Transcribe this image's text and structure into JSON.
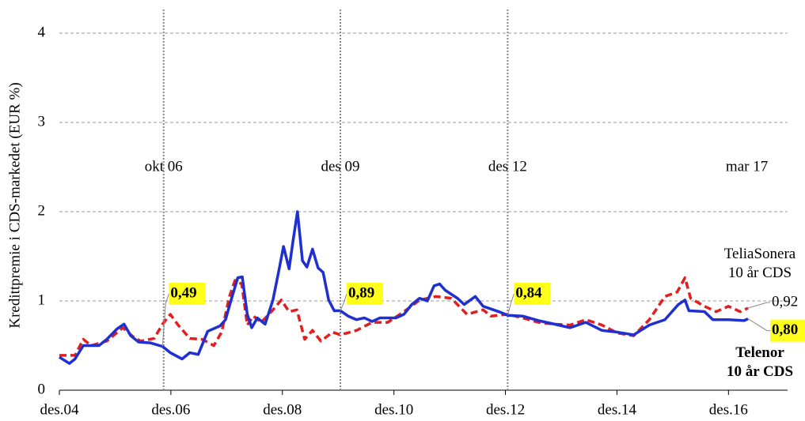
{
  "chart_data": {
    "type": "line",
    "y_label": "Kredittpremie i CDS-markedet (EUR %)",
    "xlim": [
      2004.92,
      2017.98
    ],
    "xticks": [
      {
        "value": 2004.92,
        "label": "des.04"
      },
      {
        "value": 2006.92,
        "label": "des.06"
      },
      {
        "value": 2008.92,
        "label": "des.08"
      },
      {
        "value": 2010.92,
        "label": "des.10"
      },
      {
        "value": 2012.92,
        "label": "des.12"
      },
      {
        "value": 2014.92,
        "label": "des.14"
      },
      {
        "value": 2016.92,
        "label": "des.16"
      }
    ],
    "ylim": [
      0,
      4.2
    ],
    "yticks": [
      0,
      1,
      2,
      3,
      4
    ],
    "grid": true,
    "event_lines": [
      {
        "x": 2006.79,
        "label": "okt 06",
        "line": true
      },
      {
        "x": 2009.96,
        "label": "des 09",
        "line": true
      },
      {
        "x": 2012.96,
        "label": "des 12",
        "line": true
      },
      {
        "x": 2017.25,
        "label": "mar 17",
        "line": false
      }
    ],
    "series": [
      {
        "name": "TeliaSonera 10 år CDS",
        "color": "#e02020",
        "dashed": true,
        "bold_name": false,
        "x": [
          2004.92,
          2005.2,
          2005.35,
          2005.49,
          2005.77,
          2006.06,
          2006.24,
          2006.38,
          2006.62,
          2006.77,
          2006.91,
          2007.05,
          2007.26,
          2007.48,
          2007.69,
          2007.83,
          2007.97,
          2008.07,
          2008.19,
          2008.29,
          2008.4,
          2008.54,
          2008.75,
          2008.9,
          2009.04,
          2009.18,
          2009.32,
          2009.46,
          2009.61,
          2009.82,
          2009.96,
          2010.25,
          2010.53,
          2010.81,
          2011.1,
          2011.38,
          2011.67,
          2011.95,
          2012.23,
          2012.52,
          2012.66,
          2012.96,
          2013.23,
          2013.51,
          2013.8,
          2014.08,
          2014.36,
          2014.65,
          2014.93,
          2015.22,
          2015.5,
          2015.78,
          2016.0,
          2016.14,
          2016.24,
          2016.49,
          2016.7,
          2016.92,
          2017.13,
          2017.27
        ],
        "values": [
          0.39,
          0.39,
          0.57,
          0.5,
          0.55,
          0.7,
          0.6,
          0.55,
          0.58,
          0.74,
          0.85,
          0.73,
          0.58,
          0.57,
          0.5,
          0.65,
          1.05,
          1.23,
          1.19,
          0.73,
          0.83,
          0.76,
          0.9,
          1.01,
          0.88,
          0.9,
          0.57,
          0.67,
          0.55,
          0.65,
          0.62,
          0.67,
          0.76,
          0.76,
          0.88,
          1.01,
          1.05,
          1.03,
          0.85,
          0.9,
          0.83,
          0.85,
          0.81,
          0.76,
          0.74,
          0.73,
          0.79,
          0.73,
          0.64,
          0.61,
          0.79,
          1.05,
          1.1,
          1.26,
          1.03,
          0.94,
          0.88,
          0.94,
          0.88,
          0.92
        ],
        "value_labels": [
          null,
          null,
          null,
          null,
          null,
          null,
          null,
          null,
          null,
          null,
          null,
          null,
          null,
          null,
          null,
          null,
          null,
          null,
          null,
          null,
          null,
          null,
          null,
          null,
          null,
          null,
          null,
          null,
          null,
          null,
          null,
          null,
          null,
          null,
          null,
          null,
          null,
          null,
          null,
          null,
          null,
          null,
          null,
          null,
          null,
          null,
          null,
          null,
          null,
          null,
          null,
          null,
          null,
          null,
          null,
          null,
          null,
          null,
          null,
          "0,92"
        ]
      },
      {
        "name": "Telenor 10 år CDS",
        "color": "#1f2fd0",
        "dashed": false,
        "bold_name": true,
        "label_background": "#ffff1a",
        "x": [
          2004.92,
          2005.1,
          2005.2,
          2005.35,
          2005.63,
          2005.77,
          2005.96,
          2006.08,
          2006.2,
          2006.34,
          2006.55,
          2006.77,
          2006.91,
          2007.12,
          2007.26,
          2007.41,
          2007.58,
          2007.8,
          2007.9,
          2008.0,
          2008.12,
          2008.2,
          2008.29,
          2008.37,
          2008.47,
          2008.61,
          2008.75,
          2008.85,
          2008.94,
          2009.04,
          2009.11,
          2009.19,
          2009.28,
          2009.36,
          2009.46,
          2009.56,
          2009.65,
          2009.75,
          2009.85,
          2009.96,
          2010.1,
          2010.25,
          2010.39,
          2010.53,
          2010.67,
          2010.96,
          2011.1,
          2011.24,
          2011.38,
          2011.52,
          2011.64,
          2011.74,
          2011.84,
          2012.06,
          2012.18,
          2012.38,
          2012.52,
          2012.8,
          2012.96,
          2013.23,
          2013.51,
          2013.8,
          2014.08,
          2014.36,
          2014.65,
          2014.93,
          2015.22,
          2015.5,
          2015.78,
          2016.02,
          2016.14,
          2016.21,
          2016.49,
          2016.64,
          2016.92,
          2017.2,
          2017.27
        ],
        "values": [
          0.37,
          0.3,
          0.35,
          0.5,
          0.5,
          0.57,
          0.69,
          0.74,
          0.61,
          0.54,
          0.53,
          0.49,
          0.42,
          0.35,
          0.42,
          0.4,
          0.66,
          0.72,
          0.79,
          1.01,
          1.26,
          1.27,
          0.85,
          0.7,
          0.81,
          0.74,
          1.01,
          1.32,
          1.61,
          1.36,
          1.67,
          2.0,
          1.45,
          1.38,
          1.58,
          1.37,
          1.32,
          1.01,
          0.89,
          0.89,
          0.83,
          0.79,
          0.81,
          0.77,
          0.81,
          0.81,
          0.85,
          0.96,
          1.03,
          1.0,
          1.17,
          1.19,
          1.12,
          1.03,
          0.96,
          1.05,
          0.94,
          0.88,
          0.84,
          0.83,
          0.78,
          0.74,
          0.7,
          0.76,
          0.67,
          0.65,
          0.62,
          0.73,
          0.79,
          0.96,
          1.01,
          0.89,
          0.88,
          0.79,
          0.79,
          0.78,
          0.8
        ],
        "value_labels": [
          null,
          null,
          null,
          null,
          null,
          null,
          null,
          null,
          null,
          null,
          null,
          "0,49",
          null,
          null,
          null,
          null,
          null,
          null,
          null,
          null,
          null,
          null,
          null,
          null,
          null,
          null,
          null,
          null,
          null,
          null,
          null,
          null,
          null,
          null,
          null,
          null,
          null,
          null,
          null,
          "0,89",
          null,
          null,
          null,
          null,
          null,
          null,
          null,
          null,
          null,
          null,
          null,
          null,
          null,
          null,
          null,
          null,
          null,
          null,
          "0,84",
          null,
          null,
          null,
          null,
          null,
          null,
          null,
          null,
          null,
          null,
          null,
          null,
          null,
          null,
          null,
          null,
          null,
          "0,80"
        ]
      }
    ]
  }
}
